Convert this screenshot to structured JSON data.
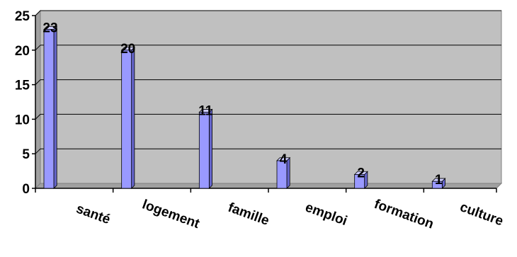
{
  "chart_data": {
    "type": "bar",
    "categories": [
      "santé",
      "logement",
      "famille",
      "emploi",
      "formation",
      "culture"
    ],
    "values": [
      23,
      20,
      11,
      4,
      2,
      1
    ],
    "ylim": [
      0,
      25
    ],
    "yticks": [
      0,
      5,
      10,
      15,
      20,
      25
    ],
    "grid": true,
    "legend": "none",
    "colors": {
      "plot_background": "#c0c0c0",
      "bar_front": "#9999ff",
      "bar_side": "#6666cc",
      "bar_top": "#ccccff",
      "gridline": "#000000",
      "axis": "#000000"
    }
  }
}
